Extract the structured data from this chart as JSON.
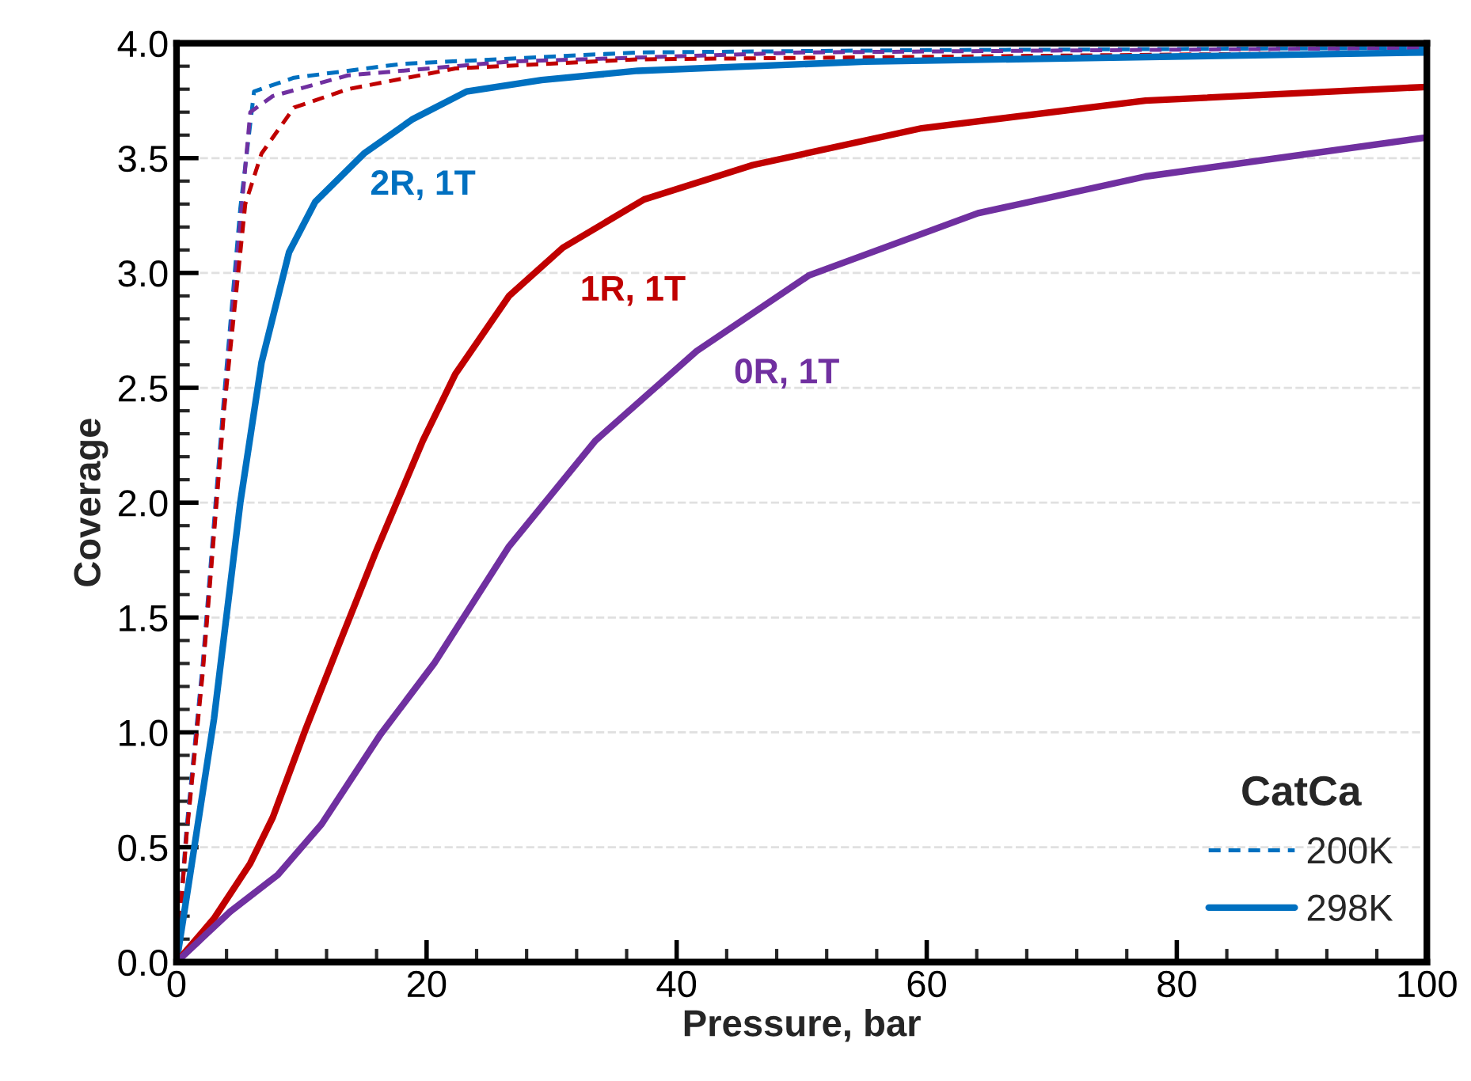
{
  "chart_data": {
    "type": "line",
    "xlabel": "Pressure, bar",
    "ylabel": "Coverage",
    "legend_title": "CatCa",
    "legend": "bottom right",
    "grid": "y",
    "marker": "none",
    "xlim": [
      0,
      100
    ],
    "xticks": [
      0,
      20,
      40,
      60,
      80,
      100
    ],
    "ylim": [
      0,
      4
    ],
    "yticks": [
      {
        "value": 0,
        "label": "0.0"
      },
      {
        "value": 0.5,
        "label": "0.5"
      },
      {
        "value": 1,
        "label": "1.0"
      },
      {
        "value": 1.5,
        "label": "1.5"
      },
      {
        "value": 2,
        "label": "2.0"
      },
      {
        "value": 2.5,
        "label": "2.5"
      },
      {
        "value": 3,
        "label": "3.0"
      },
      {
        "value": 3.5,
        "label": "3.5"
      },
      {
        "value": 4,
        "label": "4.0"
      }
    ],
    "series": [
      {
        "name": "200K",
        "color": "#0070c0",
        "line_style": "dashed",
        "x": [
          0,
          0.8,
          2.1,
          3.8,
          5.1,
          6.2,
          9.4,
          18,
          36.9,
          60,
          100
        ],
        "values": [
          0,
          0.58,
          1.3,
          2.46,
          3.28,
          3.79,
          3.85,
          3.91,
          3.96,
          3.97,
          3.98
        ]
      },
      {
        "color": "#7030a0",
        "line_style": "dashed",
        "x": [
          0,
          0.8,
          2.1,
          3.8,
          5.1,
          5.9,
          7.7,
          13.7,
          26.6,
          50,
          100
        ],
        "values": [
          0,
          0.56,
          1.28,
          2.42,
          3.22,
          3.7,
          3.77,
          3.86,
          3.92,
          3.96,
          3.98
        ]
      },
      {
        "color": "#c00000",
        "line_style": "dashed",
        "x": [
          0,
          0.8,
          2.1,
          3.8,
          5.5,
          6.8,
          9.4,
          13.7,
          22.3,
          36.9,
          100
        ],
        "values": [
          0,
          0.55,
          1.26,
          2.4,
          3.3,
          3.52,
          3.72,
          3.8,
          3.89,
          3.93,
          3.96
        ]
      },
      {
        "name": "298K",
        "color": "#0070c0",
        "line_style": "solid",
        "x": [
          0,
          1,
          3,
          5.1,
          6.8,
          7.9,
          9.0,
          11.1,
          15.0,
          18.9,
          23.2,
          29.2,
          36.9,
          55.1,
          100
        ],
        "values": [
          0,
          0.35,
          1.06,
          2.0,
          2.61,
          2.85,
          3.09,
          3.31,
          3.52,
          3.67,
          3.79,
          3.84,
          3.88,
          3.92,
          3.96
        ]
      },
      {
        "color": "#c00000",
        "line_style": "solid",
        "x": [
          0,
          3.0,
          5.9,
          7.7,
          10.3,
          12.9,
          15.9,
          19.7,
          22.3,
          26.6,
          30.9,
          37.4,
          46.1,
          59.6,
          77.5,
          100
        ],
        "values": [
          0,
          0.19,
          0.43,
          0.63,
          1.01,
          1.37,
          1.78,
          2.27,
          2.56,
          2.9,
          3.11,
          3.32,
          3.47,
          3.63,
          3.75,
          3.81
        ]
      },
      {
        "color": "#7030a0",
        "line_style": "solid",
        "x": [
          0,
          4.3,
          8.1,
          11.6,
          16.3,
          20.6,
          26.6,
          33.5,
          41.6,
          50.6,
          64.1,
          77.5,
          100
        ],
        "values": [
          0,
          0.22,
          0.38,
          0.6,
          0.99,
          1.3,
          1.81,
          2.27,
          2.66,
          2.99,
          3.26,
          3.42,
          3.59
        ]
      }
    ],
    "annotations": [
      "2R, 1T",
      "1R, 1T",
      "0R, 1T"
    ]
  }
}
